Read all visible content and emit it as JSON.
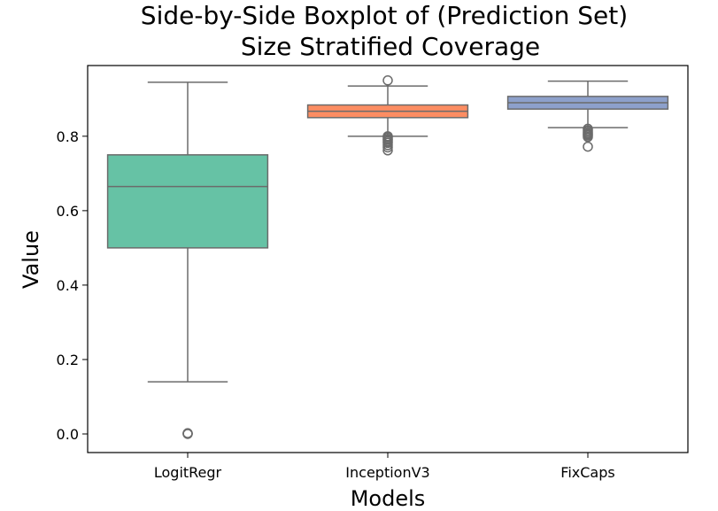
{
  "chart_data": {
    "type": "boxplot",
    "title_lines": [
      "Side-by-Side Boxplot of (Prediction Set)",
      "Size Stratified Coverage"
    ],
    "xlabel": "Models",
    "ylabel": "Value",
    "ylim": [
      -0.05,
      0.99
    ],
    "yticks": [
      0.0,
      0.2,
      0.4,
      0.6,
      0.8
    ],
    "ytick_labels": [
      "0.0",
      "0.2",
      "0.4",
      "0.6",
      "0.8"
    ],
    "grid": false,
    "categories": [
      "LogitRegr",
      "InceptionV3",
      "FixCaps"
    ],
    "boxes": [
      {
        "category": "LogitRegr",
        "whisker_low": 0.14,
        "q1": 0.5,
        "median": 0.665,
        "q3": 0.75,
        "whisker_high": 0.945,
        "outliers": [
          0.0,
          0.001,
          0.002
        ],
        "color": "#66c2a5"
      },
      {
        "category": "InceptionV3",
        "whisker_low": 0.8,
        "q1": 0.85,
        "median": 0.867,
        "q3": 0.884,
        "whisker_high": 0.935,
        "outliers": [
          0.95,
          0.8,
          0.797,
          0.793,
          0.79,
          0.786,
          0.782,
          0.776,
          0.77,
          0.762
        ],
        "color": "#fc8d62"
      },
      {
        "category": "FixCaps",
        "whisker_low": 0.823,
        "q1": 0.873,
        "median": 0.89,
        "q3": 0.907,
        "whisker_high": 0.948,
        "outliers": [
          0.82,
          0.816,
          0.812,
          0.808,
          0.805,
          0.802,
          0.798,
          0.772
        ],
        "color": "#8da0cb"
      }
    ],
    "line_color": "#6b6b6b"
  }
}
